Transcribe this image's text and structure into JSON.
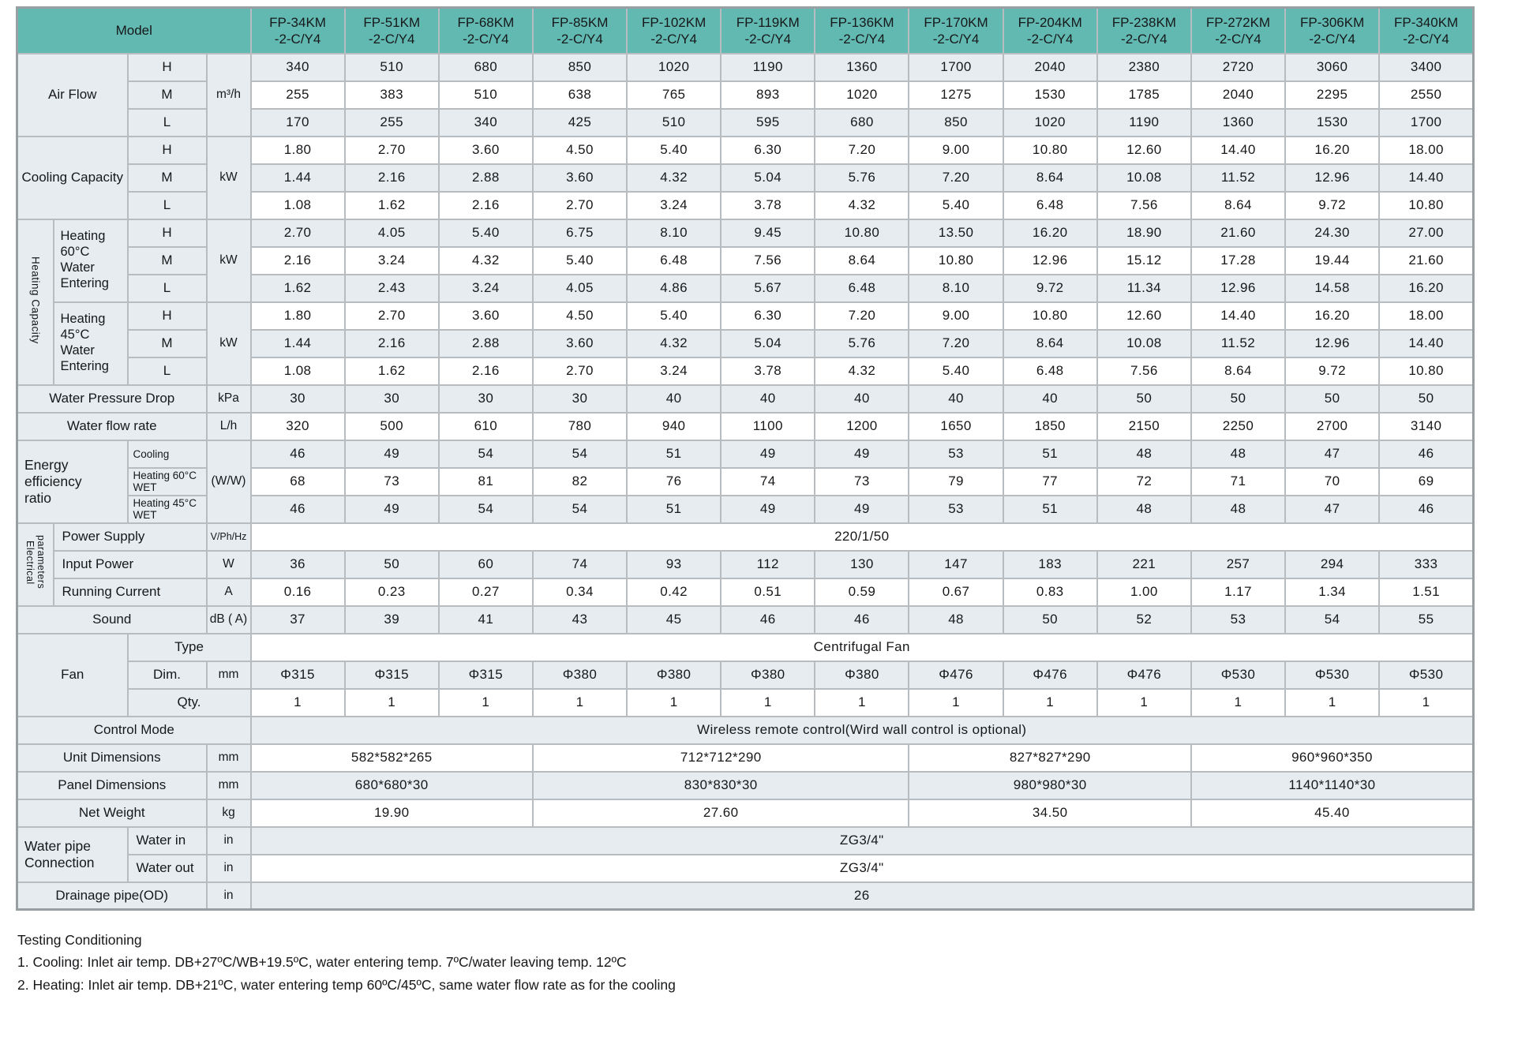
{
  "colors": {
    "header_teal": "#62b9b1",
    "row_light": "#e6ecef",
    "row_white": "#ffffff"
  },
  "header": {
    "model_label": "Model",
    "models": [
      "FP-34KM\n-2-C/Y4",
      "FP-51KM\n-2-C/Y4",
      "FP-68KM\n-2-C/Y4",
      "FP-85KM\n-2-C/Y4",
      "FP-102KM\n-2-C/Y4",
      "FP-119KM\n-2-C/Y4",
      "FP-136KM\n-2-C/Y4",
      "FP-170KM\n-2-C/Y4",
      "FP-204KM\n-2-C/Y4",
      "FP-238KM\n-2-C/Y4",
      "FP-272KM\n-2-C/Y4",
      "FP-306KM\n-2-C/Y4",
      "FP-340KM\n-2-C/Y4"
    ]
  },
  "labels": {
    "air": "Air Flow",
    "cooling": "Cooling Capacity",
    "heating_capacity": "Heating Capacity",
    "h60": "Heating\n60°C\nWater\nEntering",
    "h45": "Heating\n45°C\nWater\nEntering",
    "h": "H",
    "m": "M",
    "l": "L",
    "wpd": "Water Pressure Drop",
    "wfr": "Water flow rate",
    "eer": "Energy\nefficiency\nratio",
    "eer_cooling": "Cooling",
    "eer_h60": "Heating 60°C WET",
    "eer_h45": "Heating 45°C WET",
    "elec": "Electrical\nparameters",
    "power_supply": "Power Supply",
    "input_power": "Input Power",
    "running_current": "Running Current",
    "sound": "Sound",
    "fan": "Fan",
    "fan_type": "Type",
    "fan_dim": "Dim.",
    "fan_qty": "Qty.",
    "control": "Control Mode",
    "unit_dim": "Unit Dimensions",
    "panel_dim": "Panel Dimensions",
    "net_weight": "Net Weight",
    "pipe": "Water pipe\nConnection",
    "water_in": "Water in",
    "water_out": "Water out",
    "drainage": "Drainage pipe(OD)"
  },
  "units": {
    "air": "m³/h",
    "kw": "kW",
    "wpd": "kPa",
    "wfr": "L/h",
    "eer": "(W/W)",
    "ps": "V/Ph/Hz",
    "w": "W",
    "a": "A",
    "sound": "dB ( A)",
    "mm": "mm",
    "kg": "kg",
    "inch": "in"
  },
  "values": {
    "air_h": [
      "340",
      "510",
      "680",
      "850",
      "1020",
      "1190",
      "1360",
      "1700",
      "2040",
      "2380",
      "2720",
      "3060",
      "3400"
    ],
    "air_m": [
      "255",
      "383",
      "510",
      "638",
      "765",
      "893",
      "1020",
      "1275",
      "1530",
      "1785",
      "2040",
      "2295",
      "2550"
    ],
    "air_l": [
      "170",
      "255",
      "340",
      "425",
      "510",
      "595",
      "680",
      "850",
      "1020",
      "1190",
      "1360",
      "1530",
      "1700"
    ],
    "cool_h": [
      "1.80",
      "2.70",
      "3.60",
      "4.50",
      "5.40",
      "6.30",
      "7.20",
      "9.00",
      "10.80",
      "12.60",
      "14.40",
      "16.20",
      "18.00"
    ],
    "cool_m": [
      "1.44",
      "2.16",
      "2.88",
      "3.60",
      "4.32",
      "5.04",
      "5.76",
      "7.20",
      "8.64",
      "10.08",
      "11.52",
      "12.96",
      "14.40"
    ],
    "cool_l": [
      "1.08",
      "1.62",
      "2.16",
      "2.70",
      "3.24",
      "3.78",
      "4.32",
      "5.40",
      "6.48",
      "7.56",
      "8.64",
      "9.72",
      "10.80"
    ],
    "h60_h": [
      "2.70",
      "4.05",
      "5.40",
      "6.75",
      "8.10",
      "9.45",
      "10.80",
      "13.50",
      "16.20",
      "18.90",
      "21.60",
      "24.30",
      "27.00"
    ],
    "h60_m": [
      "2.16",
      "3.24",
      "4.32",
      "5.40",
      "6.48",
      "7.56",
      "8.64",
      "10.80",
      "12.96",
      "15.12",
      "17.28",
      "19.44",
      "21.60"
    ],
    "h60_l": [
      "1.62",
      "2.43",
      "3.24",
      "4.05",
      "4.86",
      "5.67",
      "6.48",
      "8.10",
      "9.72",
      "11.34",
      "12.96",
      "14.58",
      "16.20"
    ],
    "h45_h": [
      "1.80",
      "2.70",
      "3.60",
      "4.50",
      "5.40",
      "6.30",
      "7.20",
      "9.00",
      "10.80",
      "12.60",
      "14.40",
      "16.20",
      "18.00"
    ],
    "h45_m": [
      "1.44",
      "2.16",
      "2.88",
      "3.60",
      "4.32",
      "5.04",
      "5.76",
      "7.20",
      "8.64",
      "10.08",
      "11.52",
      "12.96",
      "14.40"
    ],
    "h45_l": [
      "1.08",
      "1.62",
      "2.16",
      "2.70",
      "3.24",
      "3.78",
      "4.32",
      "5.40",
      "6.48",
      "7.56",
      "8.64",
      "9.72",
      "10.80"
    ],
    "wpd": [
      "30",
      "30",
      "30",
      "30",
      "40",
      "40",
      "40",
      "40",
      "40",
      "50",
      "50",
      "50",
      "50"
    ],
    "wfr": [
      "320",
      "500",
      "610",
      "780",
      "940",
      "1100",
      "1200",
      "1650",
      "1850",
      "2150",
      "2250",
      "2700",
      "3140"
    ],
    "eer_c": [
      "46",
      "49",
      "54",
      "54",
      "51",
      "49",
      "49",
      "53",
      "51",
      "48",
      "48",
      "47",
      "46"
    ],
    "eer_h60": [
      "68",
      "73",
      "81",
      "82",
      "76",
      "74",
      "73",
      "79",
      "77",
      "72",
      "71",
      "70",
      "69"
    ],
    "eer_h45": [
      "46",
      "49",
      "54",
      "54",
      "51",
      "49",
      "49",
      "53",
      "51",
      "48",
      "48",
      "47",
      "46"
    ],
    "input_w": [
      "36",
      "50",
      "60",
      "74",
      "93",
      "112",
      "130",
      "147",
      "183",
      "221",
      "257",
      "294",
      "333"
    ],
    "current": [
      "0.16",
      "0.23",
      "0.27",
      "0.34",
      "0.42",
      "0.51",
      "0.59",
      "0.67",
      "0.83",
      "1.00",
      "1.17",
      "1.34",
      "1.51"
    ],
    "sound": [
      "37",
      "39",
      "41",
      "43",
      "45",
      "46",
      "46",
      "48",
      "50",
      "52",
      "53",
      "54",
      "55"
    ],
    "fan_dim": [
      "Φ315",
      "Φ315",
      "Φ315",
      "Φ380",
      "Φ380",
      "Φ380",
      "Φ380",
      "Φ476",
      "Φ476",
      "Φ476",
      "Φ530",
      "Φ530",
      "Φ530"
    ],
    "fan_qty": [
      "1",
      "1",
      "1",
      "1",
      "1",
      "1",
      "1",
      "1",
      "1",
      "1",
      "1",
      "1",
      "1"
    ]
  },
  "spans": {
    "power_supply": "220/1/50",
    "fan_type": "Centrifugal Fan",
    "control_mode": "Wireless remote control(Wird wall control is optional)",
    "water_in": "ZG3/4\"",
    "water_out": "ZG3/4\"",
    "drainage": "26"
  },
  "groups": {
    "unit_dim": [
      "582*582*265",
      "712*712*290",
      "827*827*290",
      "960*960*350"
    ],
    "panel_dim": [
      "680*680*30",
      "830*830*30",
      "980*980*30",
      "1140*1140*30"
    ],
    "net_weight": [
      "19.90",
      "27.60",
      "34.50",
      "45.40"
    ]
  },
  "footer": {
    "title": "Testing Conditioning",
    "note1": "1. Cooling: Inlet air temp. DB+27ºC/WB+19.5ºC, water entering temp. 7ºC/water leaving temp. 12ºC",
    "note2": "2. Heating: Inlet air temp. DB+21ºC, water entering temp 60ºC/45ºC, same water flow rate as for the cooling"
  }
}
